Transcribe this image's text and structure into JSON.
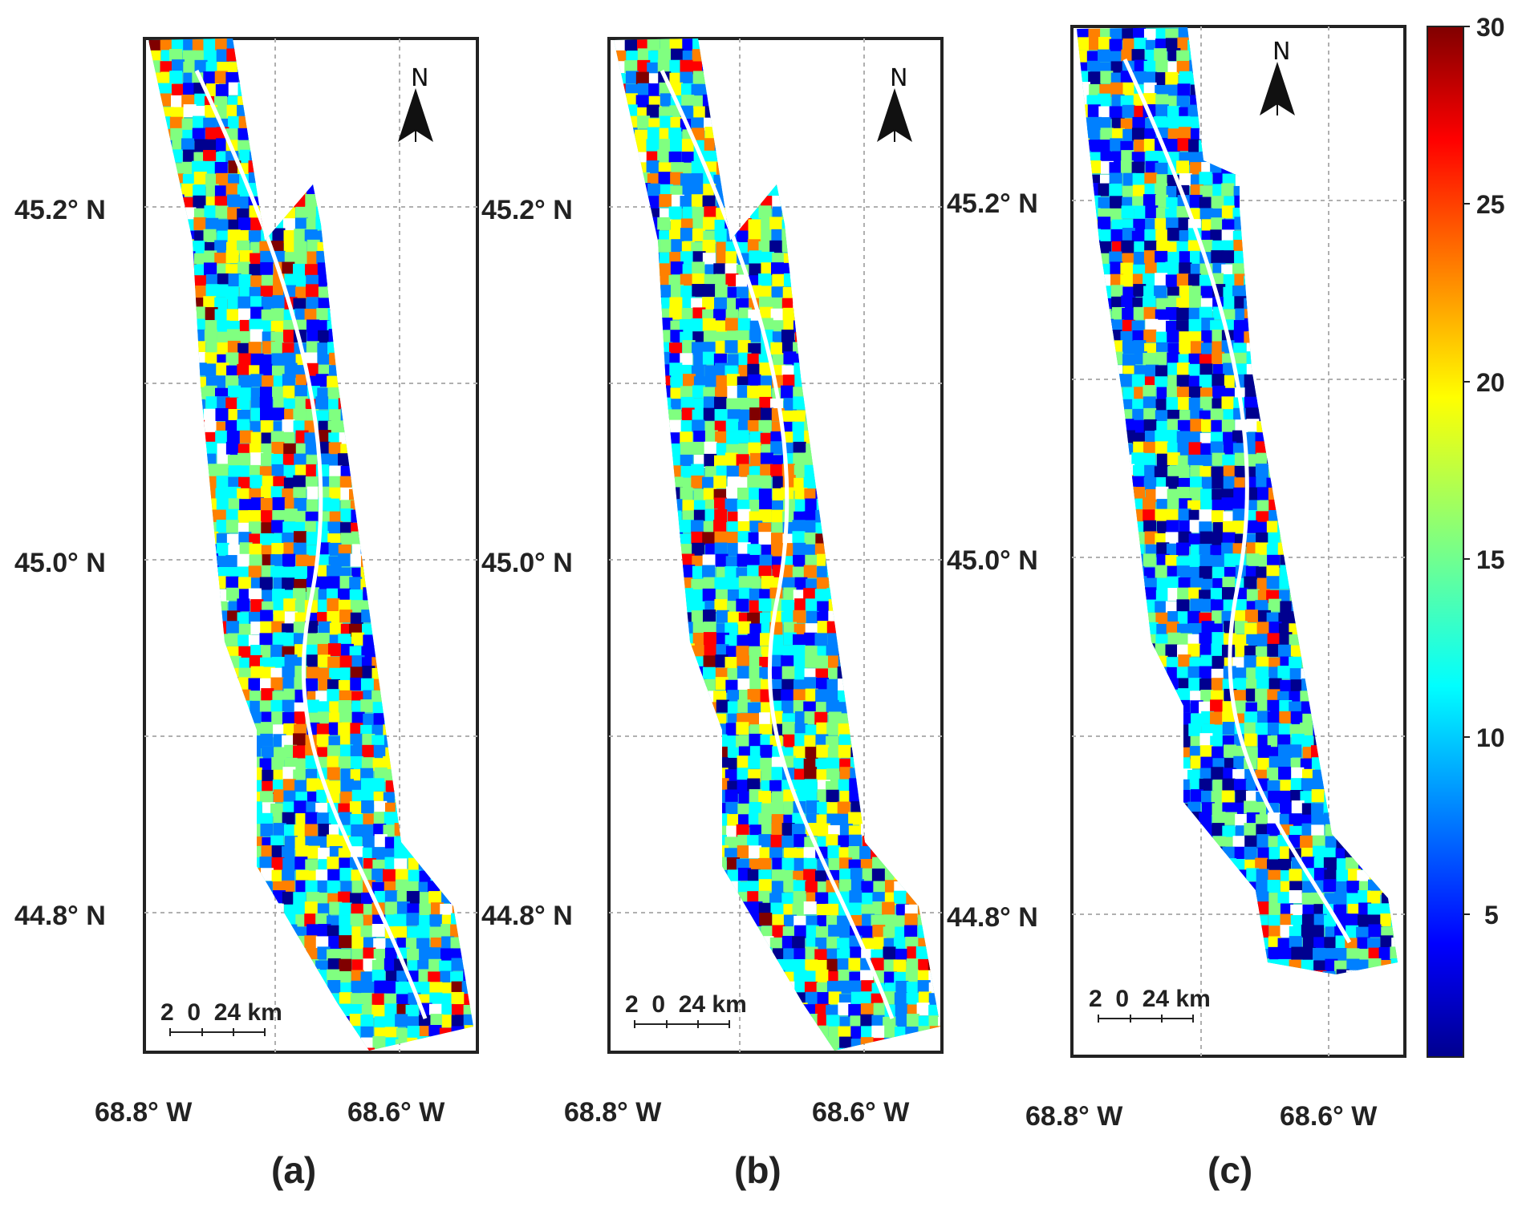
{
  "figure": {
    "panels": [
      {
        "id": "a",
        "label": "(a)",
        "lat_labels": [
          "45.2° N",
          "45.0° N",
          "44.8° N"
        ],
        "lon_labels": [
          "68.8° W",
          "68.6° W"
        ],
        "north": "N",
        "scale_label": "2  0  24 km"
      },
      {
        "id": "b",
        "label": "(b)",
        "lat_labels": [
          "45.2° N",
          "45.0° N",
          "44.8° N"
        ],
        "lon_labels": [
          "68.8° W",
          "68.6° W"
        ],
        "north": "N",
        "scale_label": "2  0  24 km"
      },
      {
        "id": "c",
        "label": "(c)",
        "lat_labels": [
          "45.2° N",
          "45.0° N",
          "44.8° N"
        ],
        "lon_labels": [
          "68.8° W",
          "68.6° W"
        ],
        "north": "N",
        "scale_label": "2  0  24 km"
      }
    ],
    "colorbar": {
      "ticks": [
        "30",
        "25",
        "20",
        "15",
        "10",
        "5"
      ],
      "min": 0,
      "max": 30,
      "colormap": "jet",
      "colors": [
        "#00008f",
        "#0000ff",
        "#0080ff",
        "#00ffff",
        "#80ff80",
        "#ffff00",
        "#ff8000",
        "#ff0000",
        "#800000"
      ]
    }
  }
}
